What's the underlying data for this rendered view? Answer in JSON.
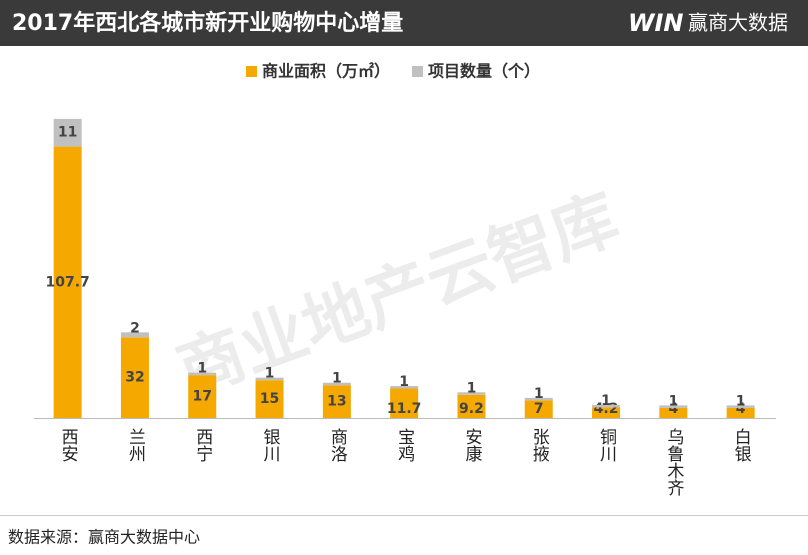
{
  "chart_data": {
    "type": "stacked_bar",
    "title": "2017年西北各城市新开业购物中心增量",
    "logo_mark": "WIN",
    "logo": "赢商大数据",
    "watermark": "商业地产云智库",
    "source": "数据来源：赢商大数据中心",
    "categories": [
      "西安",
      "兰州",
      "西宁",
      "银川",
      "商洛",
      "宝鸡",
      "安康",
      "张掖",
      "铜川",
      "乌鲁木齐",
      "白银"
    ],
    "series": [
      {
        "name": "商业面积（万㎡）",
        "color": "#f5a800",
        "values": [
          107.7,
          32,
          17,
          15,
          13,
          11.7,
          9.2,
          7,
          4.2,
          4,
          4
        ]
      },
      {
        "name": "项目数量（个）",
        "color": "#c0c0c0",
        "values": [
          11,
          2,
          1,
          1,
          1,
          1,
          1,
          1,
          1,
          1,
          1
        ]
      }
    ]
  }
}
